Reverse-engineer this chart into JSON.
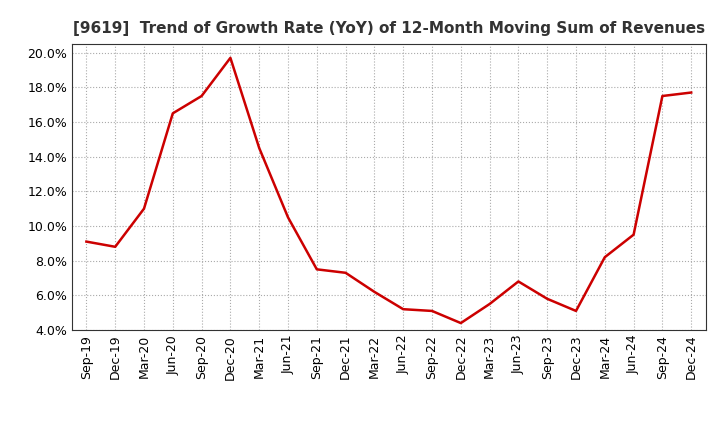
{
  "title": "[9619]  Trend of Growth Rate (YoY) of 12-Month Moving Sum of Revenues",
  "line_color": "#cc0000",
  "background_color": "#ffffff",
  "grid_color": "#aaaaaa",
  "ylim": [
    0.04,
    0.205
  ],
  "yticks": [
    0.04,
    0.06,
    0.08,
    0.1,
    0.12,
    0.14,
    0.16,
    0.18,
    0.2
  ],
  "x_labels": [
    "Sep-19",
    "Dec-19",
    "Mar-20",
    "Jun-20",
    "Sep-20",
    "Dec-20",
    "Mar-21",
    "Jun-21",
    "Sep-21",
    "Dec-21",
    "Mar-22",
    "Jun-22",
    "Sep-22",
    "Dec-22",
    "Mar-23",
    "Jun-23",
    "Sep-23",
    "Dec-23",
    "Mar-24",
    "Jun-24",
    "Sep-24",
    "Dec-24"
  ],
  "y_values": [
    0.091,
    0.088,
    0.11,
    0.165,
    0.175,
    0.197,
    0.145,
    0.105,
    0.075,
    0.073,
    0.062,
    0.052,
    0.051,
    0.044,
    0.055,
    0.068,
    0.058,
    0.051,
    0.082,
    0.095,
    0.175,
    0.177
  ],
  "title_fontsize": 11,
  "tick_fontsize": 9,
  "line_width": 1.8
}
